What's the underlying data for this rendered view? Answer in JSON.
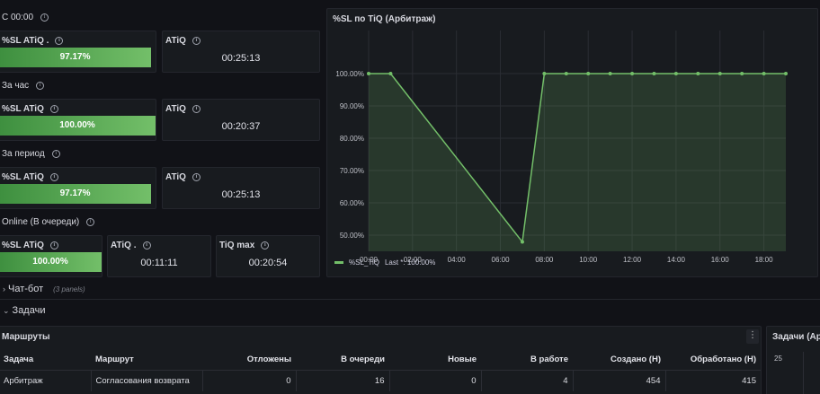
{
  "rows": {
    "since_midnight": "С 00:00",
    "per_hour": "За час",
    "per_period": "За период",
    "online": "Online (В очереди)"
  },
  "stat_panels": {
    "r1_sl": {
      "title": "%SL ATiQ .",
      "value": "97.17%",
      "fill": 0.9717
    },
    "r1_atiq": {
      "title": "ATiQ",
      "value": "00:25:13"
    },
    "r2_sl": {
      "title": "%SL ATiQ",
      "value": "100.00%",
      "fill": 1.0
    },
    "r2_atiq": {
      "title": "ATiQ",
      "value": "00:20:37"
    },
    "r3_sl": {
      "title": "%SL ATiQ",
      "value": "97.17%",
      "fill": 0.9717
    },
    "r3_atiq": {
      "title": "ATiQ",
      "value": "00:25:13"
    },
    "r4_sl": {
      "title": "%SL ATiQ",
      "value": "100.00%",
      "fill": 1.0
    },
    "r4_atiq": {
      "title": "ATiQ .",
      "value": "00:11:11"
    },
    "r4_tiqmax": {
      "title": "TiQ max",
      "value": "00:20:54"
    }
  },
  "graph": {
    "title": "%SL по TiQ (Арбитраж)",
    "legend_label": "%SL_TiQ",
    "legend_last": "Last *: 100.00%",
    "series_color": "#73bf69"
  },
  "chart_data": {
    "type": "area",
    "title": "%SL по TiQ (Арбитраж)",
    "x_ticks": [
      "00:00",
      "02:00",
      "04:00",
      "06:00",
      "08:00",
      "10:00",
      "12:00",
      "14:00",
      "16:00",
      "18:00"
    ],
    "y_ticks": [
      "100.00%",
      "90.00%",
      "80.00%",
      "70.00%",
      "60.00%",
      "50.00%"
    ],
    "ylim": [
      45,
      105
    ],
    "xlim_hours": [
      0,
      19
    ],
    "series": [
      {
        "name": "%SL_TiQ",
        "x_hours": [
          0,
          1,
          7,
          8,
          9,
          10,
          11,
          12,
          13,
          14,
          15,
          16,
          17,
          18,
          19
        ],
        "values": [
          100,
          100,
          47.9,
          100,
          100,
          100,
          100,
          100,
          100,
          100,
          100,
          100,
          100,
          100,
          100
        ]
      }
    ]
  },
  "collapsed_rows": {
    "chatbot": "Чат-бот",
    "chatbot_panels": "(3 panels)",
    "tasks": "Задачи"
  },
  "table_panel": {
    "title": "Маршруты",
    "columns": [
      "Задача",
      "Маршрут",
      "Отложены",
      "В очереди",
      "Новые",
      "В работе",
      "Создано (H)",
      "Обработано (H)"
    ],
    "rows": [
      [
        "Арбитраж",
        "Согласования возврата",
        "0",
        "16",
        "0",
        "4",
        "454",
        "415"
      ]
    ]
  },
  "side_panel": {
    "title": "Задачи (Ар",
    "y_tick": "25"
  }
}
